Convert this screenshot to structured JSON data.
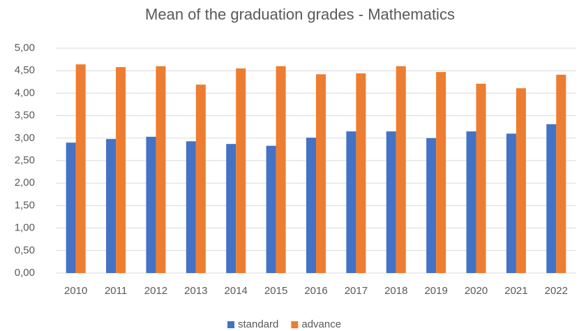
{
  "chart_data": {
    "type": "bar",
    "title": "Mean of the graduation grades - Mathematics",
    "categories": [
      "2010",
      "2011",
      "2012",
      "2013",
      "2014",
      "2015",
      "2016",
      "2017",
      "2018",
      "2019",
      "2020",
      "2021",
      "2022"
    ],
    "series": [
      {
        "name": "standard",
        "color": "#4472c4",
        "values": [
          2.9,
          2.98,
          3.03,
          2.93,
          2.87,
          2.83,
          3.01,
          3.15,
          3.15,
          3.0,
          3.15,
          3.1,
          3.31
        ]
      },
      {
        "name": "advance",
        "color": "#ed7d31",
        "values": [
          4.64,
          4.58,
          4.6,
          4.19,
          4.55,
          4.6,
          4.42,
          4.44,
          4.6,
          4.47,
          4.21,
          4.11,
          4.41
        ]
      }
    ],
    "ylim": [
      0,
      5
    ],
    "yticks": [
      {
        "value": 0,
        "label": "0,00"
      },
      {
        "value": 0.5,
        "label": "0,50"
      },
      {
        "value": 1,
        "label": "1,00"
      },
      {
        "value": 1.5,
        "label": "1,50"
      },
      {
        "value": 2,
        "label": "2,00"
      },
      {
        "value": 2.5,
        "label": "2,50"
      },
      {
        "value": 3,
        "label": "3,00"
      },
      {
        "value": 3.5,
        "label": "3,50"
      },
      {
        "value": 4,
        "label": "4,00"
      },
      {
        "value": 4.5,
        "label": "4,50"
      },
      {
        "value": 5,
        "label": "5,00"
      }
    ],
    "grid": true,
    "legend": "bottom"
  }
}
